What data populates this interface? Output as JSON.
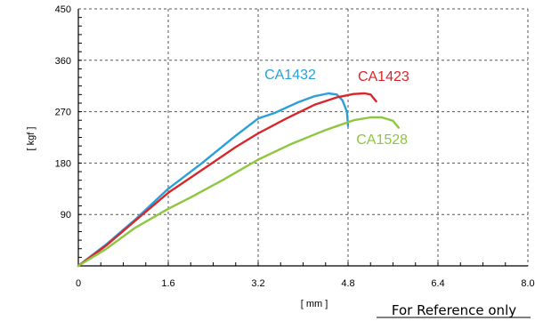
{
  "chart_data": {
    "type": "line",
    "title": "",
    "xlabel": "[ mm ]",
    "ylabel": "[ kgf ]",
    "xlim": [
      0,
      8.0
    ],
    "ylim": [
      0,
      450
    ],
    "x_ticks": [
      "0",
      "1.6",
      "3.2",
      "4.8",
      "6.4",
      "8.0"
    ],
    "y_ticks": [
      "90",
      "180",
      "270",
      "360",
      "450"
    ],
    "grid": true,
    "series": [
      {
        "name": "CA1432",
        "color": "#2a9fd8",
        "points": [
          [
            0,
            0
          ],
          [
            0.5,
            38
          ],
          [
            1.0,
            80
          ],
          [
            1.6,
            135
          ],
          [
            2.2,
            180
          ],
          [
            2.8,
            228
          ],
          [
            3.2,
            258
          ],
          [
            3.5,
            268
          ],
          [
            3.9,
            286
          ],
          [
            4.2,
            297
          ],
          [
            4.45,
            302
          ],
          [
            4.6,
            300
          ],
          [
            4.7,
            290
          ],
          [
            4.78,
            270
          ],
          [
            4.8,
            245
          ]
        ]
      },
      {
        "name": "CA1423",
        "color": "#d9262b",
        "points": [
          [
            0,
            0
          ],
          [
            0.5,
            36
          ],
          [
            1.0,
            78
          ],
          [
            1.6,
            128
          ],
          [
            2.2,
            168
          ],
          [
            2.8,
            208
          ],
          [
            3.2,
            232
          ],
          [
            3.7,
            258
          ],
          [
            4.2,
            282
          ],
          [
            4.6,
            295
          ],
          [
            4.9,
            301
          ],
          [
            5.1,
            302
          ],
          [
            5.2,
            300
          ],
          [
            5.3,
            288
          ]
        ]
      },
      {
        "name": "CA1528",
        "color": "#8dc63f",
        "points": [
          [
            0,
            0
          ],
          [
            0.5,
            30
          ],
          [
            1.0,
            66
          ],
          [
            1.6,
            100
          ],
          [
            2.0,
            120
          ],
          [
            2.6,
            152
          ],
          [
            3.2,
            186
          ],
          [
            3.8,
            214
          ],
          [
            4.4,
            238
          ],
          [
            4.9,
            255
          ],
          [
            5.2,
            260
          ],
          [
            5.4,
            260
          ],
          [
            5.6,
            254
          ],
          [
            5.7,
            242
          ]
        ]
      }
    ],
    "footnote": "For Reference only"
  }
}
